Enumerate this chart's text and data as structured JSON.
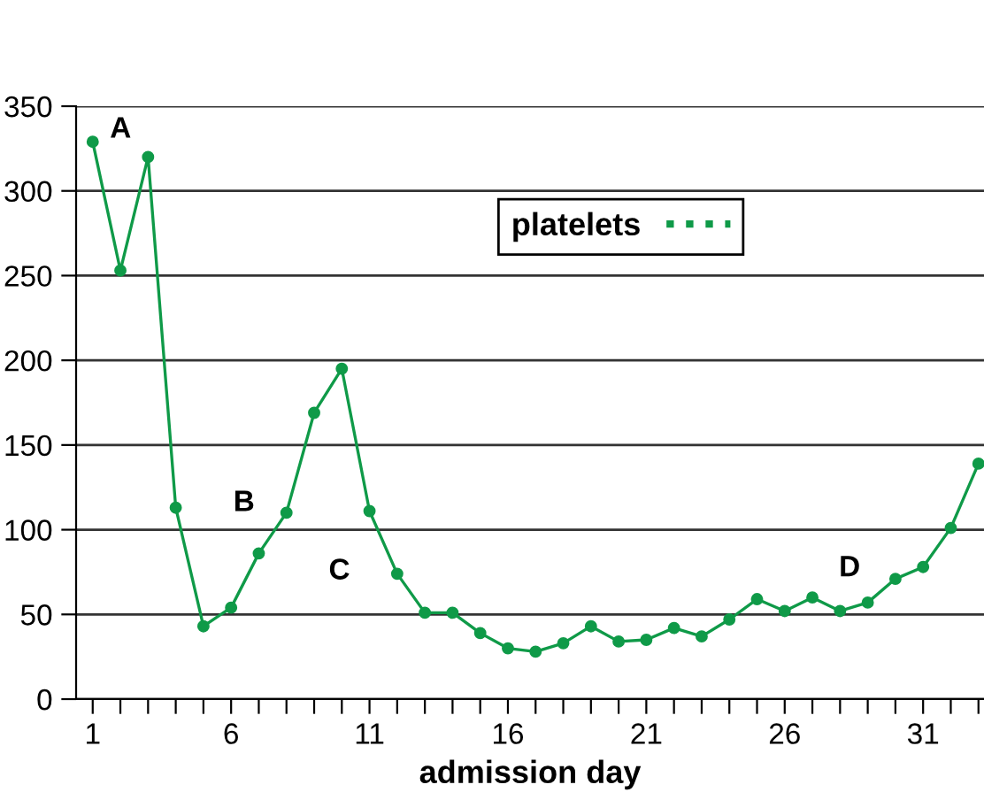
{
  "chart_data": {
    "type": "line",
    "xlabel": "admission day",
    "x": [
      1,
      2,
      3,
      4,
      5,
      6,
      7,
      8,
      9,
      10,
      11,
      12,
      13,
      14,
      15,
      16,
      17,
      18,
      19,
      20,
      21,
      22,
      23,
      24,
      25,
      26,
      27,
      28,
      29,
      30,
      31,
      32,
      33
    ],
    "series": [
      {
        "name": "platelets",
        "color": "#0f9a48",
        "values": [
          329,
          253,
          320,
          113,
          43,
          54,
          86,
          110,
          169,
          195,
          111,
          74,
          51,
          51,
          39,
          30,
          28,
          33,
          43,
          34,
          35,
          42,
          37,
          47,
          59,
          52,
          60,
          52,
          57,
          71,
          78,
          101,
          139
        ]
      }
    ],
    "xlim": [
      0.4,
      33.2
    ],
    "ylim": [
      0,
      350
    ],
    "xticks": [
      1,
      {
        "value": 2,
        "label": null
      },
      {
        "value": 3,
        "label": null
      },
      {
        "value": 4,
        "label": null
      },
      {
        "value": 5,
        "label": null
      },
      6,
      {
        "value": 7,
        "label": null
      },
      {
        "value": 8,
        "label": null
      },
      {
        "value": 9,
        "label": null
      },
      {
        "value": 10,
        "label": null
      },
      11,
      {
        "value": 12,
        "label": null
      },
      {
        "value": 13,
        "label": null
      },
      {
        "value": 14,
        "label": null
      },
      {
        "value": 15,
        "label": null
      },
      16,
      {
        "value": 17,
        "label": null
      },
      {
        "value": 18,
        "label": null
      },
      {
        "value": 19,
        "label": null
      },
      {
        "value": 20,
        "label": null
      },
      21,
      {
        "value": 22,
        "label": null
      },
      {
        "value": 23,
        "label": null
      },
      {
        "value": 24,
        "label": null
      },
      {
        "value": 25,
        "label": null
      },
      26,
      {
        "value": 27,
        "label": null
      },
      {
        "value": 28,
        "label": null
      },
      {
        "value": 29,
        "label": null
      },
      {
        "value": 30,
        "label": null
      },
      31,
      {
        "value": 32,
        "label": null
      },
      {
        "value": 33,
        "label": null
      }
    ],
    "yticks": [
      0,
      50,
      100,
      150,
      200,
      250,
      300,
      350
    ],
    "grid": "y",
    "legend": "top",
    "marker": "circle",
    "line_style": "solid",
    "annotations": [
      "A",
      "B",
      "C",
      "D"
    ]
  }
}
